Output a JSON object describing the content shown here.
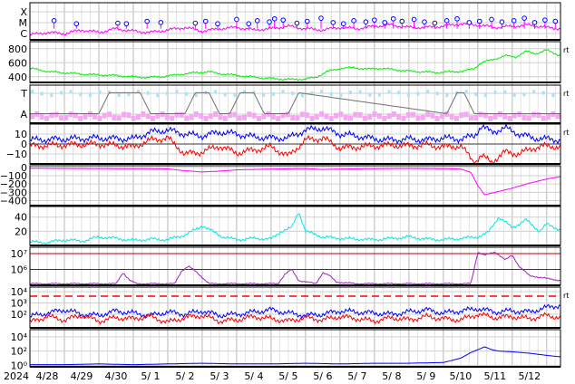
{
  "colors": {
    "magenta": "#ff00ff",
    "green": "#00ee00",
    "lightblue": "#a8e4f8",
    "pink": "#f4a8f0",
    "gray": "#707070",
    "blue": "#0000ff",
    "red": "#ff0000",
    "darkred": "#c00000",
    "purple": "#a020c0",
    "cyan": "#00e8e8"
  },
  "chart_data": {
    "type": "line",
    "x_labels": [
      "2024",
      "4/28",
      "4/29",
      "4/30",
      "5/ 1",
      "5/ 2",
      "5/ 3",
      "5/ 4",
      "5/ 5",
      "5/ 6",
      "5/ 7",
      "5/ 8",
      "5/ 9",
      "5/10",
      "5/11",
      "5/12"
    ],
    "xlim": [
      0,
      15.4
    ],
    "panels": [
      {
        "key": "flare",
        "ytick_labels": [
          "X",
          "M",
          "C"
        ],
        "ylim": [
          0,
          3
        ],
        "series": [
          {
            "color_key": "magenta",
            "x": [
              0,
              0.5,
              1,
              1.5,
              2,
              2.5,
              3,
              3.5,
              4,
              4.5,
              5,
              5.5,
              6,
              6.5,
              7,
              7.5,
              8,
              8.5,
              9,
              9.5,
              10,
              10.5,
              11,
              11.5,
              12,
              12.5,
              13,
              13.5,
              14,
              14.5,
              15,
              15.4
            ],
            "y": [
              0.4,
              0.6,
              0.5,
              0.8,
              0.6,
              0.9,
              0.7,
              0.6,
              0.8,
              1.0,
              0.7,
              0.9,
              1.0,
              0.8,
              0.9,
              1.1,
              0.9,
              0.8,
              1.0,
              0.9,
              1.1,
              1.2,
              1.0,
              1.0,
              1.1,
              1.3,
              1.2,
              1.0,
              1.1,
              1.2,
              1.0,
              0.9
            ]
          }
        ],
        "markers": [
          {
            "x": 0.7,
            "y": 1.55
          },
          {
            "x": 1.35,
            "y": 1.3
          },
          {
            "x": 2.55,
            "y": 1.35
          },
          {
            "x": 2.8,
            "y": 1.3
          },
          {
            "x": 3.4,
            "y": 1.5
          },
          {
            "x": 3.8,
            "y": 1.4
          },
          {
            "x": 4.8,
            "y": 1.35
          },
          {
            "x": 5.1,
            "y": 1.5
          },
          {
            "x": 5.45,
            "y": 1.3
          },
          {
            "x": 6.0,
            "y": 1.65
          },
          {
            "x": 6.35,
            "y": 1.3
          },
          {
            "x": 6.6,
            "y": 1.55
          },
          {
            "x": 6.95,
            "y": 1.45
          },
          {
            "x": 7.1,
            "y": 1.7
          },
          {
            "x": 7.35,
            "y": 1.6
          },
          {
            "x": 7.75,
            "y": 1.35
          },
          {
            "x": 8.05,
            "y": 1.5
          },
          {
            "x": 8.45,
            "y": 1.75
          },
          {
            "x": 8.8,
            "y": 1.4
          },
          {
            "x": 9.1,
            "y": 1.3
          },
          {
            "x": 9.4,
            "y": 1.55
          },
          {
            "x": 9.75,
            "y": 1.45
          },
          {
            "x": 10.0,
            "y": 1.6
          },
          {
            "x": 10.3,
            "y": 1.4
          },
          {
            "x": 10.55,
            "y": 1.7
          },
          {
            "x": 10.8,
            "y": 1.5
          },
          {
            "x": 11.15,
            "y": 1.65
          },
          {
            "x": 11.45,
            "y": 1.45
          },
          {
            "x": 11.75,
            "y": 1.35
          },
          {
            "x": 12.1,
            "y": 1.55
          },
          {
            "x": 12.4,
            "y": 1.7
          },
          {
            "x": 12.75,
            "y": 1.4
          },
          {
            "x": 13.05,
            "y": 1.5
          },
          {
            "x": 13.4,
            "y": 1.65
          },
          {
            "x": 13.7,
            "y": 1.45
          },
          {
            "x": 14.05,
            "y": 1.55
          },
          {
            "x": 14.35,
            "y": 1.75
          },
          {
            "x": 14.65,
            "y": 1.4
          },
          {
            "x": 14.95,
            "y": 1.6
          },
          {
            "x": 15.25,
            "y": 1.5
          }
        ]
      },
      {
        "key": "wind_speed",
        "ytick_labels": [
          "800",
          "600",
          "400"
        ],
        "ytick_values": [
          800,
          600,
          400
        ],
        "ylim": [
          320,
          900
        ],
        "right_marker": "rt",
        "series": [
          {
            "color_key": "green",
            "x": [
              0,
              0.6,
              1.2,
              1.8,
              2.4,
              3,
              3.4,
              3.8,
              4.3,
              4.8,
              5.2,
              5.6,
              6,
              6.4,
              6.8,
              7.2,
              7.6,
              8,
              8.3,
              8.6,
              9,
              9.4,
              9.8,
              10.2,
              10.6,
              11,
              11.4,
              11.8,
              12.2,
              12.6,
              12.9,
              13.1,
              13.4,
              13.8,
              14.1,
              14.4,
              14.7,
              15,
              15.4
            ],
            "y": [
              520,
              470,
              450,
              430,
              420,
              400,
              390,
              400,
              430,
              460,
              470,
              440,
              420,
              400,
              380,
              370,
              360,
              370,
              390,
              470,
              520,
              530,
              510,
              520,
              500,
              480,
              470,
              460,
              470,
              480,
              520,
              600,
              640,
              700,
              680,
              760,
              730,
              780,
              700
            ]
          }
        ]
      },
      {
        "key": "polarity",
        "ytick_labels": [
          "T",
          "A"
        ],
        "ylim": [
          0,
          1
        ],
        "right_marker": "rt",
        "series": [
          {
            "color_key": "gray",
            "x": [
              0,
              2,
              2.3,
              3.2,
              3.5,
              4.5,
              4.8,
              5.2,
              5.5,
              5.8,
              6.1,
              6.5,
              6.8,
              7.5,
              7.8,
              12.1,
              12.4,
              12.6,
              12.9,
              15.4
            ],
            "y": [
              0.25,
              0.25,
              0.8,
              0.8,
              0.25,
              0.25,
              0.8,
              0.8,
              0.25,
              0.25,
              0.8,
              0.8,
              0.25,
              0.25,
              0.8,
              0.25,
              0.8,
              0.8,
              0.25,
              0.25
            ]
          }
        ]
      },
      {
        "key": "bfield",
        "ytick_labels": [
          "10",
          "0",
          "−10"
        ],
        "ytick_values": [
          10,
          0,
          -10
        ],
        "ylim": [
          -20,
          20
        ],
        "right_marker": "rt",
        "series": [
          {
            "color_key": "blue",
            "x": [
              0,
              1,
              2,
              3,
              3.5,
              4,
              4.5,
              5,
              5.5,
              6,
              6.5,
              7,
              7.5,
              8,
              8.5,
              9,
              9.5,
              10,
              10.5,
              11,
              11.5,
              12,
              12.5,
              12.9,
              13.1,
              13.4,
              13.8,
              14.2,
              14.6,
              15,
              15.4
            ],
            "y": [
              4,
              5,
              6,
              5,
              12,
              14,
              10,
              8,
              12,
              10,
              7,
              6,
              6,
              14,
              16,
              10,
              8,
              5,
              4,
              5,
              4,
              6,
              5,
              8,
              18,
              12,
              16,
              10,
              6,
              5,
              4
            ]
          },
          {
            "color_key": "red",
            "x": [
              0,
              1,
              2,
              3,
              3.5,
              4,
              4.5,
              5,
              5.5,
              6,
              6.5,
              7,
              7.5,
              8,
              8.5,
              9,
              9.5,
              10,
              10.5,
              11,
              11.5,
              12,
              12.5,
              12.9,
              13.1,
              13.4,
              13.8,
              14.2,
              14.6,
              15,
              15.4
            ],
            "y": [
              -2,
              -1,
              0,
              -3,
              4,
              6,
              -10,
              -8,
              -2,
              -9,
              -6,
              -3,
              -12,
              4,
              6,
              -4,
              -3,
              -2,
              -1,
              -2,
              -1,
              -3,
              -2,
              -18,
              -12,
              -18,
              -8,
              -10,
              -4,
              -2,
              -3
            ]
          }
        ]
      },
      {
        "key": "dst",
        "ytick_labels": [
          "0",
          "−100",
          "−200",
          "−300",
          "−400"
        ],
        "ytick_values": [
          0,
          -100,
          -200,
          -300,
          -400
        ],
        "ylim": [
          -460,
          20
        ],
        "series": [
          {
            "color_key": "magenta",
            "x": [
              0,
              1,
              2,
              3,
              4,
              4.5,
              5,
              5.5,
              6,
              7,
              8,
              8.5,
              9,
              10,
              11,
              12,
              12.5,
              12.8,
              13,
              13.2,
              13.5,
              14,
              14.5,
              15,
              15.4
            ],
            "y": [
              -10,
              -12,
              -14,
              -15,
              -18,
              -40,
              -55,
              -45,
              -30,
              -20,
              -15,
              -25,
              -20,
              -15,
              -12,
              -15,
              -20,
              -60,
              -220,
              -330,
              -300,
              -250,
              -190,
              -140,
              -110
            ]
          }
        ]
      },
      {
        "key": "proton_density",
        "ytick_labels": [
          "40",
          "20"
        ],
        "ytick_values": [
          40,
          20
        ],
        "ylim": [
          0,
          55
        ],
        "series": [
          {
            "color_key": "cyan",
            "x": [
              0,
              0.5,
              1,
              1.5,
              2,
              2.5,
              3,
              3.5,
              4,
              4.5,
              4.8,
              5,
              5.3,
              5.6,
              6,
              6.5,
              7,
              7.3,
              7.6,
              7.8,
              8,
              8.5,
              9,
              9.5,
              10,
              10.5,
              11,
              11.5,
              12,
              12.5,
              13,
              13.3,
              13.6,
              14,
              14.4,
              14.8,
              15,
              15.4
            ],
            "y": [
              5,
              4,
              8,
              6,
              12,
              10,
              7,
              9,
              8,
              15,
              22,
              28,
              20,
              12,
              8,
              10,
              9,
              20,
              25,
              48,
              20,
              12,
              10,
              9,
              8,
              10,
              12,
              9,
              8,
              10,
              12,
              18,
              40,
              25,
              36,
              20,
              30,
              22
            ]
          }
        ]
      },
      {
        "key": "electron_flux",
        "ytick_labels": [
          "10⁷",
          "10⁶"
        ],
        "ytick_values": [
          7,
          6
        ],
        "ylim": [
          5,
          7.4
        ],
        "series": [
          {
            "color_key": "purple",
            "x": [
              0,
              2.5,
              2.7,
              2.9,
              3.1,
              4.2,
              4.4,
              4.6,
              4.8,
              5.0,
              5.2,
              7.2,
              7.4,
              7.6,
              7.8,
              8.3,
              8.5,
              8.7,
              8.9,
              9.5,
              12.8,
              13.0,
              13.2,
              13.5,
              13.8,
              14.0,
              14.2,
              14.5,
              15.4
            ],
            "y": [
              5.1,
              5.1,
              5.8,
              5.3,
              5.1,
              5.1,
              5.9,
              6.2,
              5.9,
              5.5,
              5.1,
              5.1,
              5.7,
              6.0,
              5.3,
              5.1,
              5.8,
              5.6,
              5.2,
              5.1,
              5.1,
              7.1,
              6.9,
              7.1,
              6.6,
              6.9,
              6.2,
              5.6,
              5.3
            ]
          }
        ]
      },
      {
        "key": "xray_flux",
        "ytick_labels": [
          "10⁴",
          "10³",
          "10²"
        ],
        "ytick_values": [
          4,
          3,
          2
        ],
        "ylim": [
          0.8,
          4.4
        ],
        "right_marker": "rt",
        "series": [
          {
            "color_key": "blue",
            "x": [
              0,
              0.5,
              1,
              1.5,
              2,
              2.5,
              3,
              3.5,
              4,
              4.5,
              5,
              5.5,
              6,
              6.5,
              7,
              7.5,
              8,
              8.5,
              9,
              9.5,
              10,
              10.5,
              11,
              11.5,
              12,
              12.5,
              13,
              13.5,
              14,
              14.5,
              15,
              15.4
            ],
            "y": [
              1.8,
              2.1,
              2.4,
              2.0,
              1.9,
              2.3,
              2.1,
              1.9,
              2.2,
              2.0,
              2.3,
              1.9,
              2.0,
              2.2,
              2.4,
              2.1,
              1.9,
              2.0,
              2.3,
              2.2,
              2.1,
              2.0,
              2.2,
              2.4,
              2.1,
              2.3,
              2.5,
              2.2,
              2.3,
              2.2,
              2.6,
              2.8
            ]
          },
          {
            "color_key": "red",
            "x": [
              0,
              0.5,
              1,
              1.5,
              2,
              2.5,
              3,
              3.5,
              4,
              4.5,
              5,
              5.5,
              6,
              6.5,
              7,
              7.5,
              8,
              8.5,
              9,
              9.5,
              10,
              10.5,
              11,
              11.5,
              12,
              12.5,
              13,
              13.5,
              14,
              14.5,
              15,
              15.4
            ],
            "y": [
              1.3,
              1.8,
              1.5,
              1.9,
              1.4,
              1.7,
              1.6,
              1.8,
              1.3,
              1.7,
              1.9,
              1.4,
              1.5,
              1.8,
              1.6,
              1.4,
              1.7,
              1.5,
              1.8,
              1.6,
              1.4,
              1.7,
              1.5,
              1.8,
              1.6,
              1.5,
              2.0,
              1.7,
              1.8,
              1.6,
              1.9,
              1.7
            ]
          }
        ]
      },
      {
        "key": "kp",
        "ytick_labels": [
          "10⁴",
          "10²",
          "10⁰"
        ],
        "ytick_values": [
          4,
          2,
          0
        ],
        "ylim": [
          -0.2,
          5
        ],
        "series": [
          {
            "color_key": "blue",
            "x": [
              0,
              1,
              2,
              3,
              4,
              5,
              6,
              7,
              8,
              9,
              10,
              11,
              12,
              12.5,
              12.8,
              13,
              13.2,
              13.4,
              13.6,
              14,
              14.5,
              15,
              15.4
            ],
            "y": [
              0.1,
              0.1,
              0.2,
              0.1,
              0.2,
              0.3,
              0.2,
              0.2,
              0.3,
              0.2,
              0.3,
              0.3,
              0.4,
              1.0,
              1.8,
              2.2,
              2.6,
              2.2,
              2.0,
              1.9,
              1.7,
              1.4,
              1.2
            ]
          }
        ]
      }
    ]
  }
}
